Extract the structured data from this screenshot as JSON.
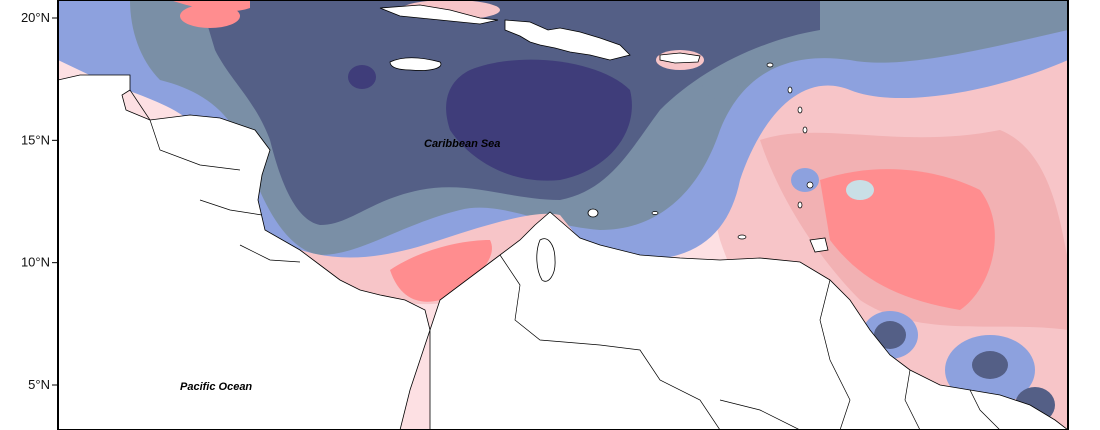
{
  "map": {
    "y_axis": {
      "ticks": [
        {
          "label": "20°N",
          "lat": 20
        },
        {
          "label": "15°N",
          "lat": 15
        },
        {
          "label": "10°N",
          "lat": 10
        },
        {
          "label": "5°N",
          "lat": 5
        }
      ]
    },
    "labels": {
      "sea": "Caribbean Sea",
      "ocean": "Pacific Ocean"
    },
    "colors": {
      "very_strong_blue": "#3f3d7a",
      "strong_blue": "#545f86",
      "medium_blue": "#7a8fa6",
      "light_blue": "#8da1de",
      "pale_blue": "#c9dfe6",
      "pale_pink": "#fde0e3",
      "light_pink": "#f7c5c8",
      "medium_pink": "#f2b1b3",
      "strong_red": "#ff8d8f",
      "land": "#ffffff",
      "coastline": "#000000"
    }
  }
}
